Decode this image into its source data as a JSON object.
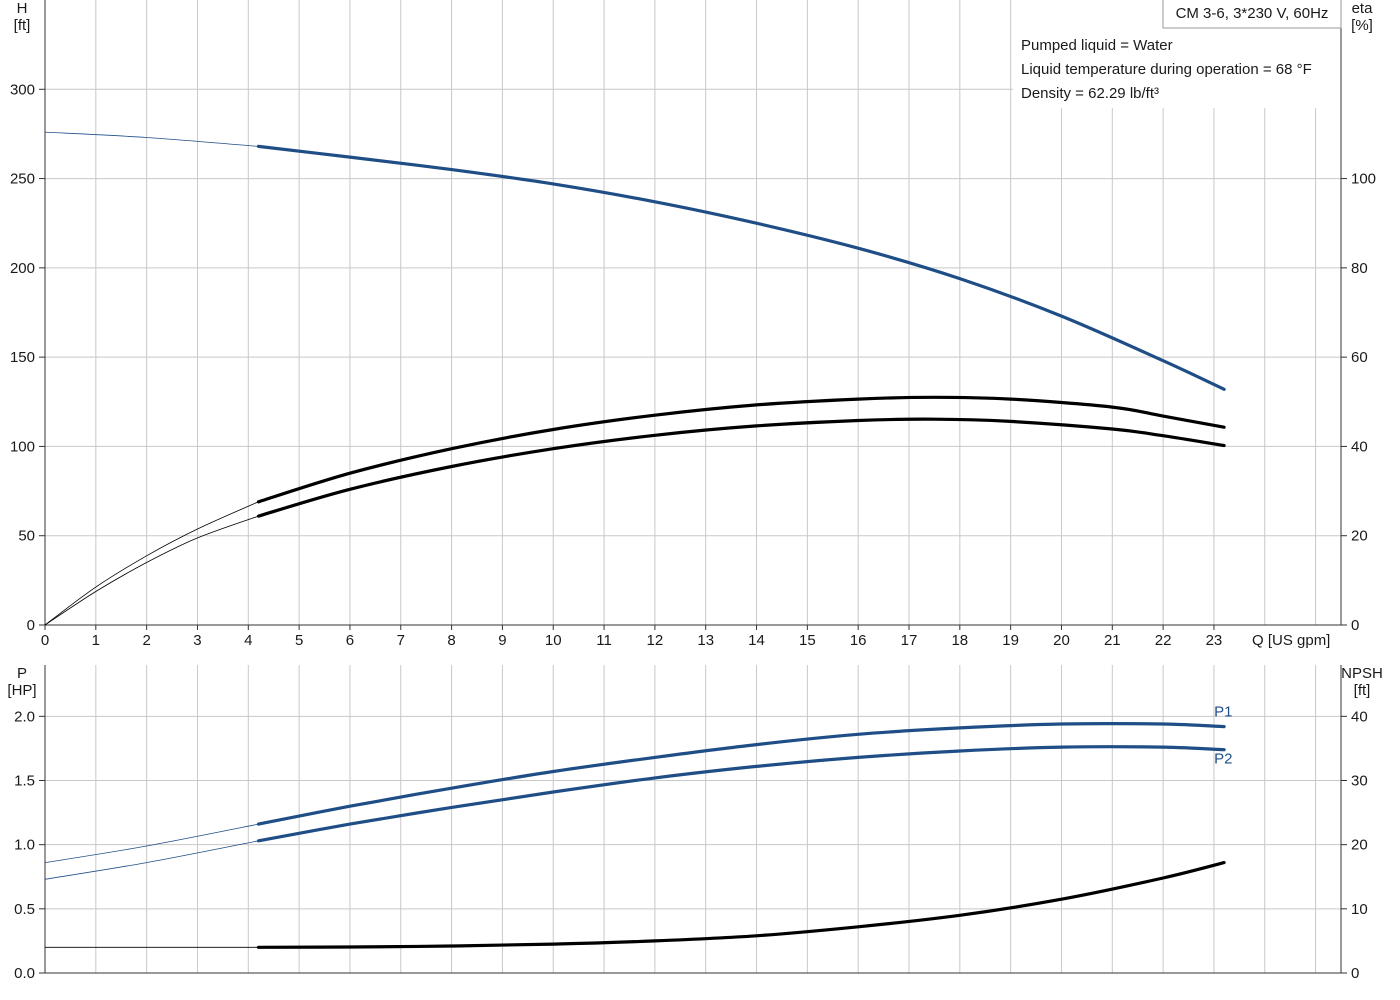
{
  "model_label": "CM 3-6, 3*230 V, 60Hz",
  "info_lines": [
    "Pumped liquid = Water",
    "Liquid temperature during operation = 68 °F",
    "Density = 62.29 lb/ft³"
  ],
  "colors": {
    "blue": "#1f4e87",
    "black": "#000000",
    "grid": "#c8c8c8",
    "axis": "#333333"
  },
  "chart_data": [
    {
      "type": "line",
      "x_axis": {
        "label": "Q [US gpm]",
        "range": [
          0,
          25.5
        ],
        "ticks": [
          0,
          1,
          2,
          3,
          4,
          5,
          6,
          7,
          8,
          9,
          10,
          11,
          12,
          13,
          14,
          15,
          16,
          17,
          18,
          19,
          20,
          21,
          22,
          23
        ]
      },
      "y_axis_left": {
        "label_line1": "H",
        "label_line2": "[ft]",
        "range": [
          0,
          350
        ],
        "ticks": [
          0,
          50,
          100,
          150,
          200,
          250,
          300
        ]
      },
      "y_axis_right": {
        "label_line1": "eta",
        "label_line2": "[%]",
        "range": [
          0,
          140
        ],
        "ticks": [
          0,
          20,
          40,
          60,
          80,
          100
        ]
      },
      "grid": true,
      "series": [
        {
          "axis": "left",
          "color": "blue",
          "operating_from": 4.2,
          "x": [
            0,
            2,
            4.2,
            6,
            8,
            10,
            12,
            14,
            16,
            18,
            20,
            22,
            23.2
          ],
          "y": [
            276,
            273,
            268,
            262,
            255,
            247,
            237,
            225,
            211,
            194,
            173,
            148,
            132
          ]
        },
        {
          "axis": "right",
          "color": "black",
          "operating_from": 4.2,
          "x": [
            0,
            1,
            2,
            3,
            4.2,
            6,
            8,
            10,
            12,
            14,
            16,
            17.5,
            19,
            21,
            22,
            23.2
          ],
          "y": [
            0,
            8.5,
            15.5,
            21.5,
            27.6,
            34,
            39.5,
            43.8,
            47,
            49.3,
            50.6,
            51,
            50.6,
            48.8,
            46.8,
            44.3
          ]
        },
        {
          "axis": "right",
          "color": "black",
          "operating_from": 4.2,
          "x": [
            0,
            1,
            2,
            3,
            4.2,
            6,
            8,
            10,
            12,
            14,
            16,
            17.5,
            19,
            21,
            22,
            23.2
          ],
          "y": [
            0,
            7.5,
            14,
            19.5,
            24.4,
            30.4,
            35.5,
            39.5,
            42.5,
            44.6,
            45.8,
            46.1,
            45.6,
            43.9,
            42.4,
            40.2
          ]
        }
      ]
    },
    {
      "type": "line",
      "x_axis": {
        "label": "",
        "range": [
          0,
          25.5
        ],
        "ticks": []
      },
      "y_axis_left": {
        "label_line1": "P",
        "label_line2": "[HP]",
        "range": [
          0,
          2.4
        ],
        "ticks": [
          "0.0",
          "0.5",
          "1.0",
          "1.5",
          "2.0"
        ]
      },
      "y_axis_right": {
        "label_line1": "NPSH",
        "label_line2": "[ft]",
        "range": [
          0,
          48
        ],
        "ticks": [
          0,
          10,
          20,
          30,
          40
        ]
      },
      "grid": true,
      "series": [
        {
          "name": "P1",
          "axis": "left",
          "color": "blue",
          "operating_from": 4.2,
          "x": [
            0,
            2,
            4.2,
            6,
            8,
            10,
            12,
            14,
            16,
            18,
            20,
            22,
            23.2
          ],
          "y": [
            0.86,
            0.99,
            1.16,
            1.3,
            1.44,
            1.57,
            1.68,
            1.78,
            1.86,
            1.91,
            1.94,
            1.94,
            1.92
          ]
        },
        {
          "name": "P2",
          "axis": "left",
          "color": "blue",
          "operating_from": 4.2,
          "x": [
            0,
            2,
            4.2,
            6,
            8,
            10,
            12,
            14,
            16,
            18,
            20,
            22,
            23.2
          ],
          "y": [
            0.73,
            0.86,
            1.03,
            1.16,
            1.29,
            1.41,
            1.52,
            1.61,
            1.68,
            1.73,
            1.76,
            1.76,
            1.74
          ]
        },
        {
          "axis": "right",
          "color": "black",
          "operating_from": 4.2,
          "x": [
            0,
            2,
            4.2,
            6,
            8,
            10,
            12,
            14,
            16,
            18,
            20,
            22,
            23.2
          ],
          "y": [
            4.0,
            4.0,
            4.0,
            4.05,
            4.2,
            4.5,
            5.0,
            5.8,
            7.2,
            9.0,
            11.5,
            14.8,
            17.2
          ]
        }
      ]
    }
  ]
}
